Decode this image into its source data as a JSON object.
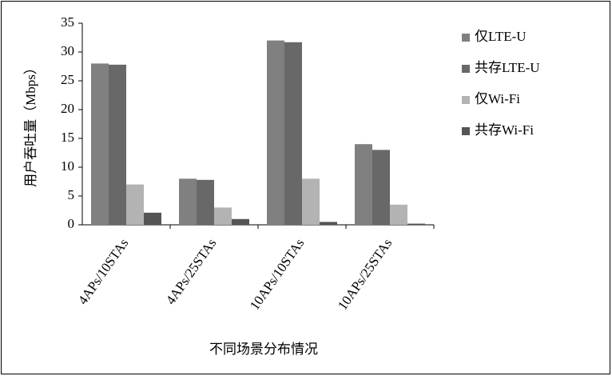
{
  "chart_data": {
    "type": "bar",
    "y_label": "用户吞吐量（Mbps）",
    "x_label": "不同场景分布情况",
    "categories": [
      "4APs/10STAs",
      "4APs/25STAs",
      "10APs/10STAs",
      "10APs/25STAs"
    ],
    "series": [
      {
        "name": "仅LTE-U",
        "color": "#808080",
        "values": [
          28,
          8,
          32,
          14
        ]
      },
      {
        "name": "共存LTE-U",
        "color": "#686868",
        "values": [
          27.8,
          7.8,
          31.7,
          13
        ]
      },
      {
        "name": "仅Wi-Fi",
        "color": "#b3b3b3",
        "values": [
          7,
          3,
          8,
          3.5
        ]
      },
      {
        "name": "共存Wi-Fi",
        "color": "#555555",
        "values": [
          2.1,
          1,
          0.5,
          0.2
        ]
      }
    ],
    "ylim": [
      0,
      35
    ],
    "yticks": [
      0,
      5,
      10,
      15,
      20,
      25,
      30,
      35
    ],
    "legend": "right"
  }
}
